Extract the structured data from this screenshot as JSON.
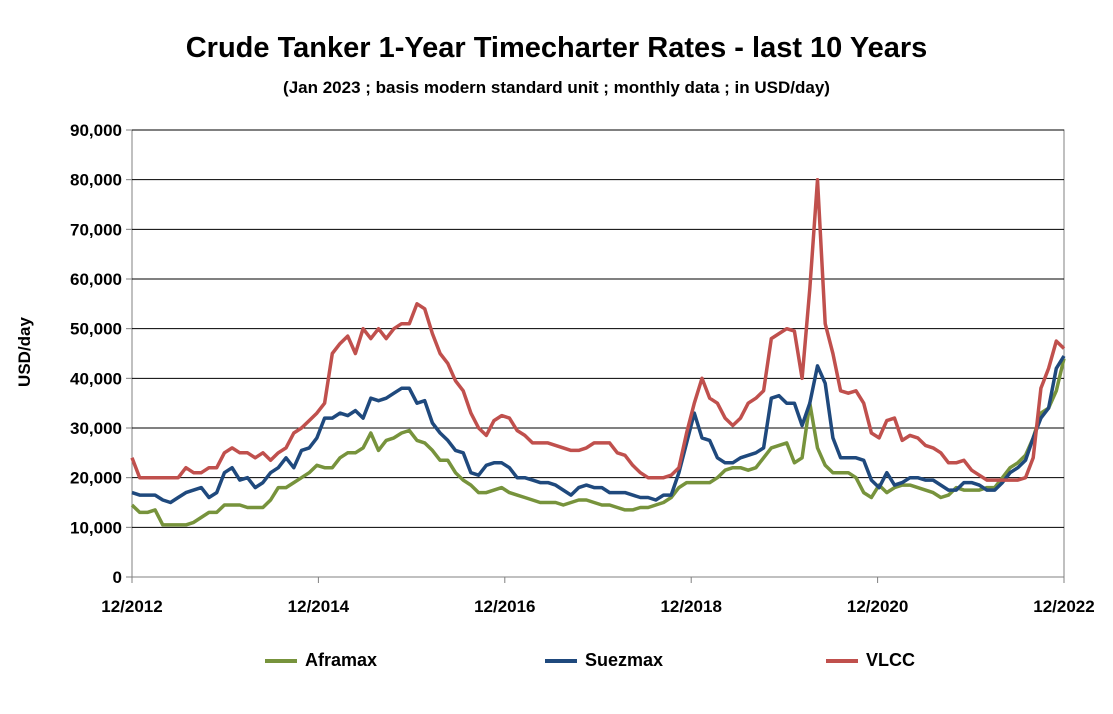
{
  "chart_data": {
    "type": "line",
    "title": "Crude Tanker 1-Year Timecharter Rates - last 10 Years",
    "subtitle": "(Jan 2023 ; basis modern standard unit ; monthly data ; in USD/day)",
    "ylabel": "USD/day",
    "xlabel": "",
    "x_start": "12/2012",
    "x_ticks": [
      "12/2012",
      "12/2014",
      "12/2016",
      "12/2018",
      "12/2020",
      "12/2022"
    ],
    "y_ticks": [
      "0",
      "10,000",
      "20,000",
      "30,000",
      "40,000",
      "50,000",
      "60,000",
      "70,000",
      "80,000",
      "90,000"
    ],
    "ylim": [
      0,
      90000
    ],
    "grid": true,
    "legend_position": "bottom",
    "series": [
      {
        "name": "Aframax",
        "color": "#77933C",
        "values": [
          14500,
          13000,
          13000,
          13500,
          10500,
          10500,
          10500,
          10500,
          11000,
          12000,
          13000,
          13000,
          14500,
          14500,
          14500,
          14000,
          14000,
          14000,
          15500,
          18000,
          18000,
          19000,
          20000,
          21000,
          22500,
          22000,
          22000,
          24000,
          25000,
          25000,
          26000,
          29000,
          25500,
          27500,
          28000,
          29000,
          29500,
          27500,
          27000,
          25500,
          23500,
          23500,
          21000,
          19500,
          18500,
          17000,
          17000,
          17500,
          18000,
          17000,
          16500,
          16000,
          15500,
          15000,
          15000,
          15000,
          14500,
          15000,
          15500,
          15500,
          15000,
          14500,
          14500,
          14000,
          13500,
          13500,
          14000,
          14000,
          14500,
          15000,
          16000,
          18000,
          19000,
          19000,
          19000,
          19000,
          20000,
          21500,
          22000,
          22000,
          21500,
          22000,
          24000,
          26000,
          26500,
          27000,
          23000,
          24000,
          35000,
          26000,
          22500,
          21000,
          21000,
          21000,
          20000,
          17000,
          16000,
          18500,
          17000,
          18000,
          18500,
          18500,
          18000,
          17500,
          17000,
          16000,
          16500,
          18000,
          17500,
          17500,
          17500,
          18000,
          18000,
          20000,
          22000,
          23000,
          24500,
          28000,
          33000,
          34000,
          37500,
          44000
        ]
      },
      {
        "name": "Suezmax",
        "color": "#1F497D",
        "values": [
          17000,
          16500,
          16500,
          16500,
          15500,
          15000,
          16000,
          17000,
          17500,
          18000,
          16000,
          17000,
          21000,
          22000,
          19500,
          20000,
          18000,
          19000,
          21000,
          22000,
          24000,
          22000,
          25500,
          26000,
          28000,
          32000,
          32000,
          33000,
          32500,
          33500,
          32000,
          36000,
          35500,
          36000,
          37000,
          38000,
          38000,
          35000,
          35500,
          31000,
          29000,
          27500,
          25500,
          25000,
          21000,
          20500,
          22500,
          23000,
          23000,
          22000,
          20000,
          20000,
          19500,
          19000,
          19000,
          18500,
          17500,
          16500,
          18000,
          18500,
          18000,
          18000,
          17000,
          17000,
          17000,
          16500,
          16000,
          16000,
          15500,
          16500,
          16500,
          21000,
          27000,
          33000,
          28000,
          27500,
          24000,
          23000,
          23000,
          24000,
          24500,
          25000,
          26000,
          36000,
          36500,
          35000,
          35000,
          30500,
          35000,
          42500,
          39000,
          28000,
          24000,
          24000,
          24000,
          23500,
          19500,
          18000,
          21000,
          18500,
          19000,
          20000,
          20000,
          19500,
          19500,
          18500,
          17500,
          17500,
          19000,
          19000,
          18500,
          17500,
          17500,
          19000,
          21000,
          22000,
          23500,
          28000,
          32000,
          34000,
          42000,
          44500
        ]
      },
      {
        "name": "VLCC",
        "color": "#C0504D",
        "values": [
          24000,
          20000,
          20000,
          20000,
          20000,
          20000,
          20000,
          22000,
          21000,
          21000,
          22000,
          22000,
          25000,
          26000,
          25000,
          25000,
          24000,
          25000,
          23500,
          25000,
          26000,
          29000,
          30000,
          31500,
          33000,
          35000,
          45000,
          47000,
          48500,
          45000,
          50000,
          48000,
          50000,
          48000,
          50000,
          51000,
          51000,
          55000,
          54000,
          49000,
          45000,
          43000,
          39500,
          37500,
          33000,
          30000,
          28500,
          31500,
          32500,
          32000,
          29500,
          28500,
          27000,
          27000,
          27000,
          26500,
          26000,
          25500,
          25500,
          26000,
          27000,
          27000,
          27000,
          25000,
          24500,
          22500,
          21000,
          20000,
          20000,
          20000,
          20500,
          22000,
          29000,
          35000,
          40000,
          36000,
          35000,
          32000,
          30500,
          32000,
          35000,
          36000,
          37500,
          48000,
          49000,
          50000,
          49500,
          40000,
          58000,
          80000,
          51000,
          45000,
          37500,
          37000,
          37500,
          35000,
          29000,
          28000,
          31500,
          32000,
          27500,
          28500,
          28000,
          26500,
          26000,
          25000,
          23000,
          23000,
          23500,
          21500,
          20500,
          19500,
          19500,
          19500,
          19500,
          19500,
          20000,
          24000,
          38000,
          42000,
          47500,
          46000
        ]
      }
    ]
  }
}
